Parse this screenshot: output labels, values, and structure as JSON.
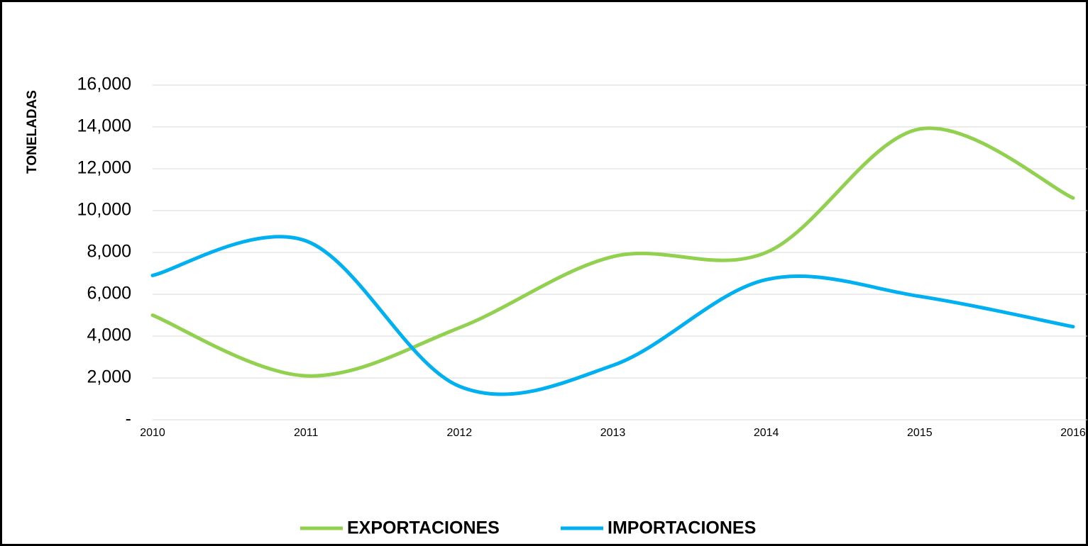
{
  "chart_data": {
    "type": "line",
    "y_label": "TONELADAS",
    "categories": [
      "2010",
      "2011",
      "2012",
      "2013",
      "2014",
      "2015",
      "2016"
    ],
    "series": [
      {
        "name": "EXPORTACIONES",
        "color": "#92d050",
        "values": [
          5000,
          2100,
          4400,
          7800,
          8000,
          13900,
          10600
        ]
      },
      {
        "name": "IMPORTACIONES",
        "color": "#00b0f0",
        "values": [
          6900,
          8550,
          1600,
          2600,
          6700,
          5900,
          4450
        ]
      }
    ],
    "ylim": [
      0,
      16000
    ],
    "yticks": [
      {
        "value": 0,
        "label": "-"
      },
      {
        "value": 2000,
        "label": "2,000"
      },
      {
        "value": 4000,
        "label": "4,000"
      },
      {
        "value": 6000,
        "label": "6,000"
      },
      {
        "value": 8000,
        "label": "8,000"
      },
      {
        "value": 10000,
        "label": "10,000"
      },
      {
        "value": 12000,
        "label": "12,000"
      },
      {
        "value": 14000,
        "label": "14,000"
      },
      {
        "value": 16000,
        "label": "16,000"
      }
    ],
    "grid": true,
    "smooth": true,
    "legend": "bottom"
  }
}
